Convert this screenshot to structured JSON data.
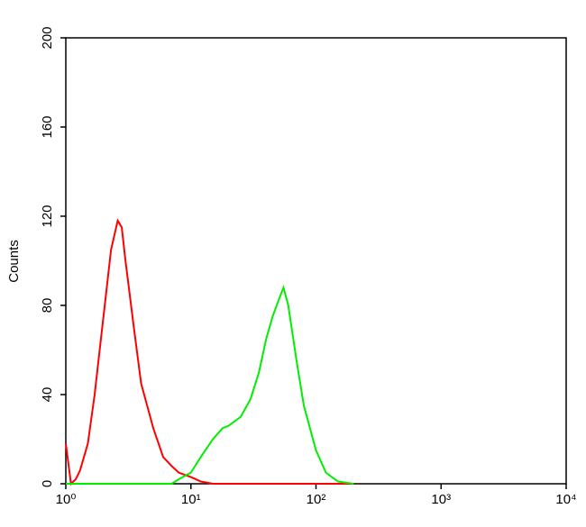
{
  "chart_data": {
    "type": "line",
    "y_label": "Counts",
    "x_log": true,
    "x": [
      1,
      1.1,
      1.2,
      1.3,
      1.5,
      1.7,
      2,
      2.3,
      2.6,
      2.8,
      3,
      3.5,
      4,
      5,
      6,
      7,
      8,
      10,
      12,
      15,
      18,
      20,
      25,
      30,
      35,
      40,
      45,
      50,
      55,
      60,
      70,
      80,
      100,
      120,
      150,
      200
    ],
    "series": [
      {
        "color": "#ff0000",
        "values": [
          18,
          0,
          2,
          6,
          18,
          40,
          75,
          105,
          118,
          115,
          100,
          70,
          45,
          25,
          12,
          8,
          5,
          3,
          1,
          0,
          0,
          0,
          0,
          0,
          0,
          0,
          0,
          0,
          0,
          0,
          0,
          0,
          0,
          0,
          0,
          0
        ]
      },
      {
        "color": "#00ee00",
        "values": [
          0,
          0,
          0,
          0,
          0,
          0,
          0,
          0,
          0,
          0,
          0,
          0,
          0,
          0,
          0,
          0,
          2,
          5,
          12,
          20,
          25,
          26,
          30,
          38,
          50,
          65,
          75,
          82,
          88,
          80,
          55,
          35,
          15,
          5,
          1,
          0
        ]
      }
    ],
    "xlim": [
      1,
      10000
    ],
    "xticks": [
      {
        "value": 1,
        "label": "10⁰"
      },
      {
        "value": 10,
        "label": "10¹"
      },
      {
        "value": 100,
        "label": "10²"
      },
      {
        "value": 1000,
        "label": "10³"
      },
      {
        "value": 10000,
        "label": "10⁴"
      }
    ],
    "ylim": [
      0,
      200
    ],
    "yticks": [
      0,
      40,
      80,
      120,
      160,
      200
    ]
  }
}
